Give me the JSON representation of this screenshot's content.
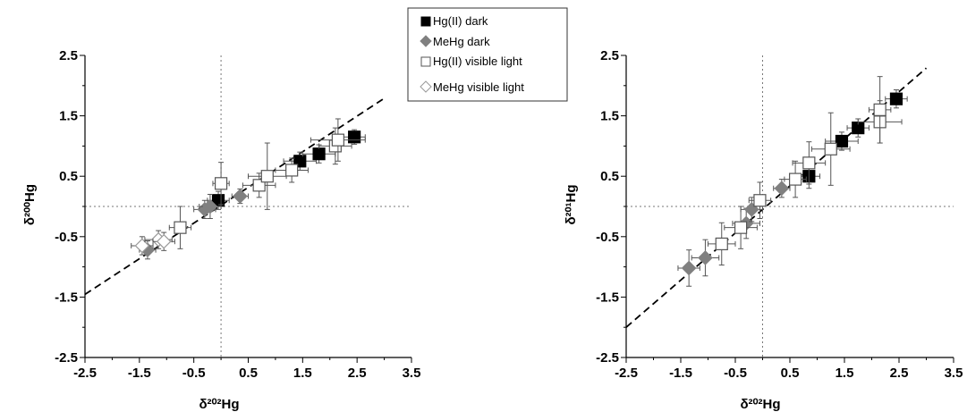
{
  "legend": {
    "items": [
      {
        "label": "Hg(II) dark",
        "marker": "square",
        "fill": "#000000",
        "stroke": "#000000"
      },
      {
        "label": "MeHg dark",
        "marker": "diamond",
        "fill": "#808080",
        "stroke": "#808080"
      },
      {
        "label": "Hg(II) visible light",
        "marker": "square",
        "fill": "#ffffff",
        "stroke": "#555555"
      },
      {
        "label": "MeHg visible light",
        "marker": "diamond",
        "fill": "#ffffff",
        "stroke": "#999999"
      }
    ]
  },
  "chart_data": [
    {
      "type": "scatter",
      "xlabel": "δ²⁰²Hg",
      "ylabel": "δ²⁰⁰Hg",
      "xlim": [
        -2.5,
        3.5
      ],
      "ylim": [
        -2.5,
        2.5
      ],
      "xticks": [
        "-2.5",
        "-1.5",
        "-0.5",
        "0.5",
        "1.5",
        "2.5",
        "3.5"
      ],
      "yticks": [
        "2.5",
        "1.5",
        "0.5",
        "-0.5",
        "-1.5",
        "-2.5"
      ],
      "reference_lines": {
        "x": 0,
        "y": 0,
        "style": "dotted"
      },
      "fit_line": {
        "style": "dashed",
        "slope": 0.59,
        "intercept": 0.02
      },
      "series": [
        {
          "name": "Hg(II) dark",
          "points": [
            {
              "x": -0.05,
              "y": 0.1,
              "xerr": 0.2,
              "yerr": 0.15
            },
            {
              "x": 1.45,
              "y": 0.75,
              "xerr": 0.3,
              "yerr": 0.15
            },
            {
              "x": 1.8,
              "y": 0.87,
              "xerr": 0.3,
              "yerr": 0.15
            },
            {
              "x": 2.45,
              "y": 1.15,
              "xerr": 0.2,
              "yerr": 0.12
            }
          ]
        },
        {
          "name": "MeHg dark",
          "points": [
            {
              "x": -1.35,
              "y": -0.72,
              "xerr": 0.15,
              "yerr": 0.15
            },
            {
              "x": -0.3,
              "y": -0.05,
              "xerr": 0.2,
              "yerr": 0.15
            },
            {
              "x": -0.2,
              "y": 0.0,
              "xerr": 0.2,
              "yerr": 0.2
            },
            {
              "x": 0.35,
              "y": 0.17,
              "xerr": 0.15,
              "yerr": 0.12
            }
          ]
        },
        {
          "name": "Hg(II) visible light",
          "points": [
            {
              "x": -0.75,
              "y": -0.35,
              "xerr": 0.2,
              "yerr": 0.35
            },
            {
              "x": 0.0,
              "y": 0.38,
              "xerr": 0.15,
              "yerr": 0.35
            },
            {
              "x": 0.7,
              "y": 0.35,
              "xerr": 0.3,
              "yerr": 0.2
            },
            {
              "x": 0.85,
              "y": 0.5,
              "xerr": 0.35,
              "yerr": 0.55
            },
            {
              "x": 1.3,
              "y": 0.6,
              "xerr": 0.3,
              "yerr": 0.2
            },
            {
              "x": 2.1,
              "y": 1.0,
              "xerr": 0.3,
              "yerr": 0.3
            },
            {
              "x": 2.15,
              "y": 1.1,
              "xerr": 0.5,
              "yerr": 0.35
            }
          ]
        },
        {
          "name": "MeHg visible light",
          "points": [
            {
              "x": -1.45,
              "y": -0.65,
              "xerr": 0.2,
              "yerr": 0.15
            },
            {
              "x": -1.15,
              "y": -0.55,
              "xerr": 0.25,
              "yerr": 0.15
            },
            {
              "x": -1.05,
              "y": -0.58,
              "xerr": 0.2,
              "yerr": 0.15
            }
          ]
        }
      ]
    },
    {
      "type": "scatter",
      "xlabel": "δ²⁰²Hg",
      "ylabel": "δ²⁰¹Hg",
      "xlim": [
        -2.5,
        3.5
      ],
      "ylim": [
        -2.5,
        2.5
      ],
      "xticks": [
        "-2.5",
        "-1.5",
        "-0.5",
        "0.5",
        "1.5",
        "2.5",
        "3.5"
      ],
      "yticks": [
        "2.5",
        "1.5",
        "0.5",
        "-0.5",
        "-1.5",
        "-2.5"
      ],
      "reference_lines": {
        "x": 0,
        "y": 0,
        "style": "dotted"
      },
      "fit_line": {
        "style": "dashed",
        "slope": 0.78,
        "intercept": -0.05
      },
      "series": [
        {
          "name": "Hg(II) dark",
          "points": [
            {
              "x": 0.85,
              "y": 0.5,
              "xerr": 0.2,
              "yerr": 0.2
            },
            {
              "x": 1.45,
              "y": 1.08,
              "xerr": 0.3,
              "yerr": 0.15
            },
            {
              "x": 1.75,
              "y": 1.3,
              "xerr": 0.2,
              "yerr": 0.15
            },
            {
              "x": 2.45,
              "y": 1.78,
              "xerr": 0.2,
              "yerr": 0.15
            }
          ]
        },
        {
          "name": "MeHg dark",
          "points": [
            {
              "x": -1.35,
              "y": -1.02,
              "xerr": 0.2,
              "yerr": 0.3
            },
            {
              "x": -1.05,
              "y": -0.85,
              "xerr": 0.25,
              "yerr": 0.3
            },
            {
              "x": -0.3,
              "y": -0.28,
              "xerr": 0.25,
              "yerr": 0.25
            },
            {
              "x": -0.2,
              "y": -0.05,
              "xerr": 0.2,
              "yerr": 0.2
            },
            {
              "x": 0.35,
              "y": 0.3,
              "xerr": 0.15,
              "yerr": 0.15
            }
          ]
        },
        {
          "name": "Hg(II) visible light",
          "points": [
            {
              "x": -0.75,
              "y": -0.62,
              "xerr": 0.25,
              "yerr": 0.35
            },
            {
              "x": -0.4,
              "y": -0.35,
              "xerr": 0.3,
              "yerr": 0.35
            },
            {
              "x": -0.05,
              "y": 0.1,
              "xerr": 0.2,
              "yerr": 0.3
            },
            {
              "x": 0.6,
              "y": 0.45,
              "xerr": 0.2,
              "yerr": 0.3
            },
            {
              "x": 0.85,
              "y": 0.72,
              "xerr": 0.3,
              "yerr": 0.35
            },
            {
              "x": 1.25,
              "y": 0.95,
              "xerr": 0.35,
              "yerr": 0.6
            },
            {
              "x": 2.15,
              "y": 1.4,
              "xerr": 0.4,
              "yerr": 0.35
            },
            {
              "x": 2.15,
              "y": 1.6,
              "xerr": 0.2,
              "yerr": 0.55
            }
          ]
        },
        {
          "name": "MeHg visible light",
          "points": []
        }
      ]
    }
  ]
}
